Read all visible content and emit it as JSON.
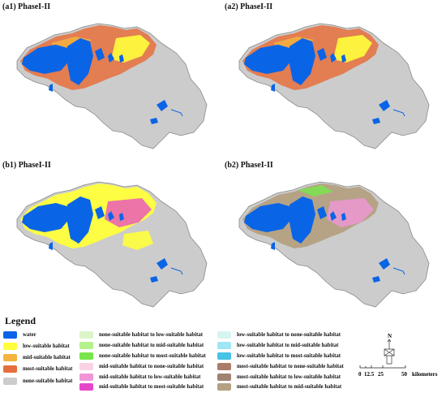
{
  "panels": [
    {
      "id": "a1",
      "label": "(a1) PhaseI-II",
      "variant": "a"
    },
    {
      "id": "a2",
      "label": "(a2) PhaseI-II",
      "variant": "a"
    },
    {
      "id": "b1",
      "label": "(b1) PhaseI-II",
      "variant": "b1"
    },
    {
      "id": "b2",
      "label": "(b2) PhaseI-II",
      "variant": "b2"
    }
  ],
  "legend": {
    "title": "Legend",
    "columns": [
      [
        {
          "label": "water",
          "color": "#0a64e6"
        },
        {
          "label": "low-suitable habitat",
          "color": "#ffff3c"
        },
        {
          "label": "mid-suitable habitat",
          "color": "#f5b43c"
        },
        {
          "label": "most-suitable habitat",
          "color": "#e66e3c"
        },
        {
          "label": "none-suitable habitat",
          "color": "#cccccc"
        }
      ],
      [
        {
          "label": "none-suitable habitat to low-suitable habitat",
          "color": "#dcf5c8"
        },
        {
          "label": "none-suitable habitat to mid-suitable habitat",
          "color": "#b4f08c"
        },
        {
          "label": "none-suitable habitat to most-suitable habitat",
          "color": "#78e64b"
        },
        {
          "label": "mid-suitable habitat to none-suitable habitat",
          "color": "#fad2e6"
        },
        {
          "label": "mid-suitable habitat to low-suitable habitat",
          "color": "#f096d7"
        },
        {
          "label": "mid-suitable habitat to most-suitable habitat",
          "color": "#e646c8"
        }
      ],
      [
        {
          "label": "low-suitable habitat to none-suitable habitat",
          "color": "#d7f5f0"
        },
        {
          "label": "low-suitable habitat to mid-suitable habitat",
          "color": "#a0e6f5"
        },
        {
          "label": "low-suitable habitat to most-suitable habitat",
          "color": "#46c3e6"
        },
        {
          "label": "most-suitable habitat to none-suitable habitat",
          "color": "#aa7d69"
        },
        {
          "label": "most-suitable habitat to low-suitable habitat",
          "color": "#a08273"
        },
        {
          "label": "most-suitable habitat to mid-suitable habitat",
          "color": "#b4a082"
        }
      ]
    ]
  },
  "scale_bar": {
    "ticks": [
      "0",
      "12.5",
      "25",
      "50"
    ],
    "unit": "kilometers",
    "north_label": "N"
  }
}
